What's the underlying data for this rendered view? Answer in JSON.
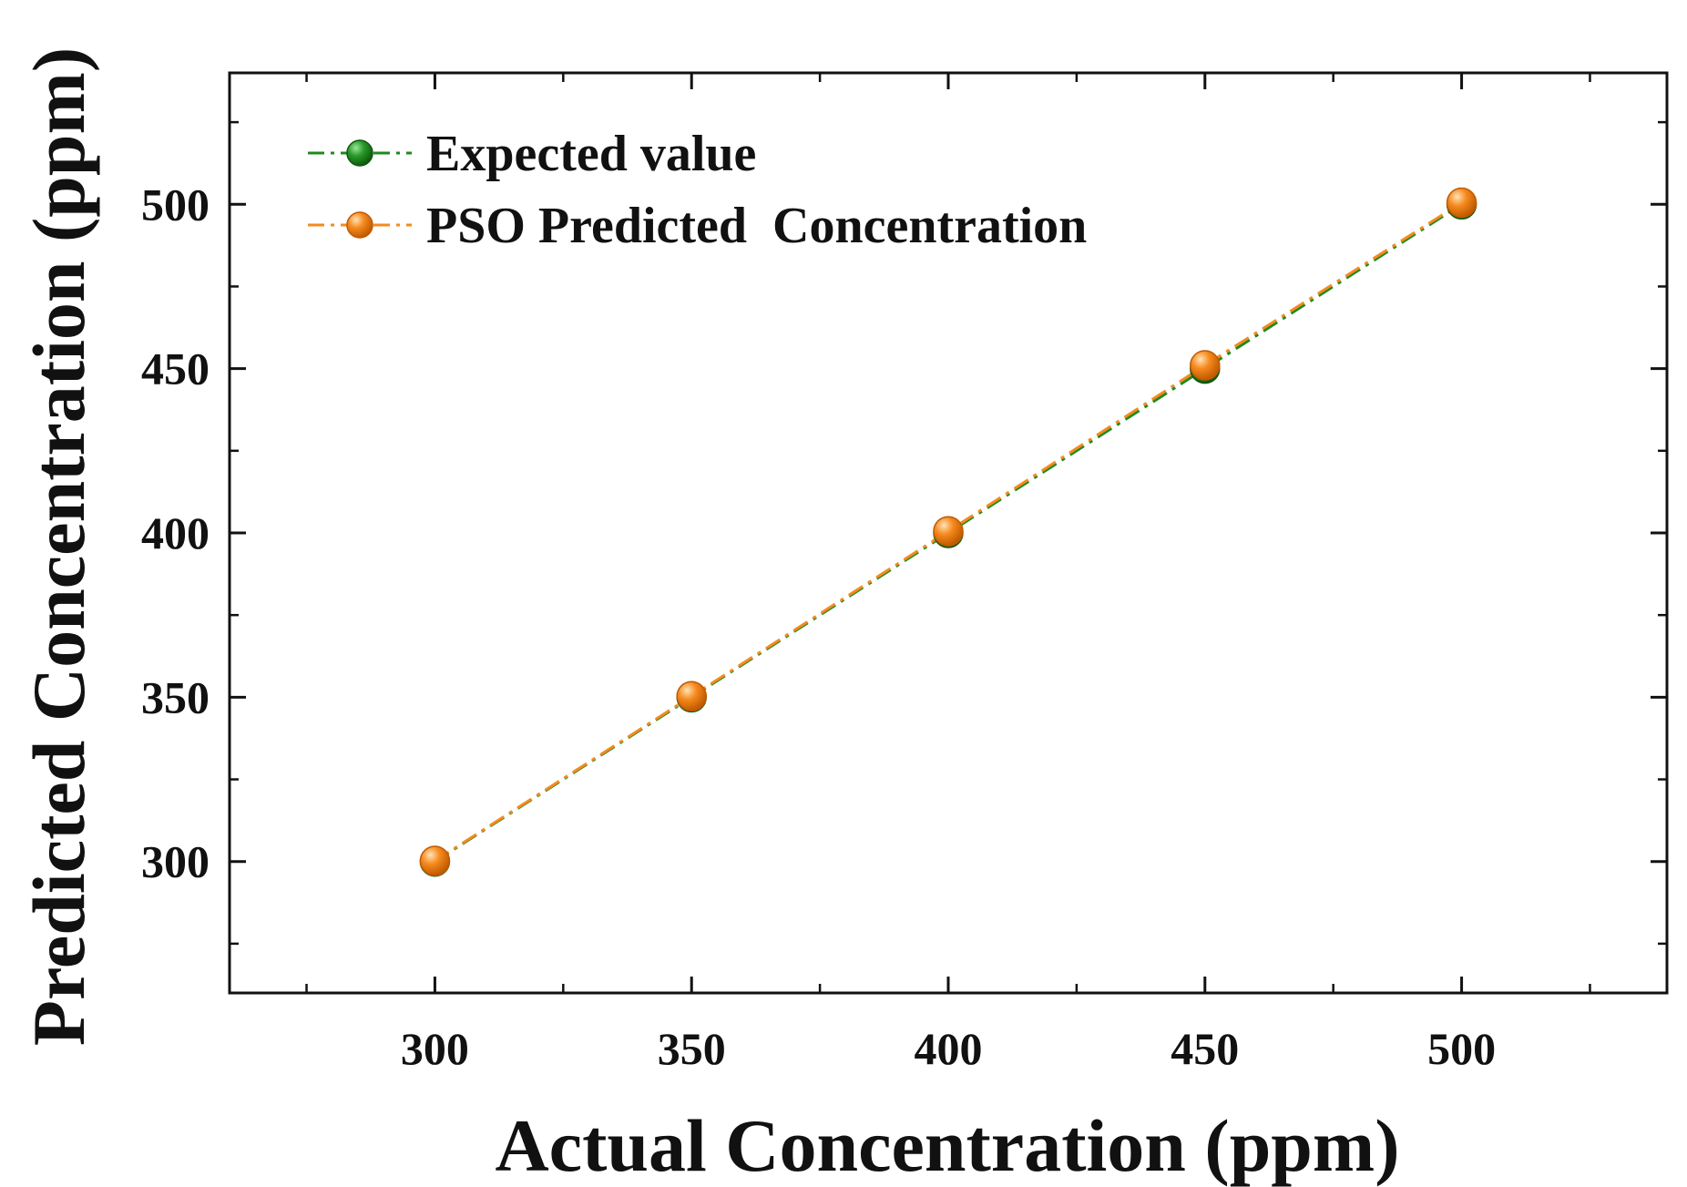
{
  "chart_data": {
    "type": "line",
    "title": "",
    "xlabel": "Actual Concentration (ppm)",
    "ylabel": "Predicted Concentration (ppm)",
    "xlim": [
      260,
      540
    ],
    "ylim": [
      260,
      540
    ],
    "xticks": [
      300,
      350,
      400,
      450,
      500
    ],
    "yticks": [
      300,
      350,
      400,
      450,
      500
    ],
    "xtick_labels": [
      "300",
      "350",
      "400",
      "450",
      "500"
    ],
    "ytick_labels": [
      "300",
      "350",
      "400",
      "450",
      "500"
    ],
    "minor_tick_step": 25,
    "grid": false,
    "legend_position": "top-left",
    "series": [
      {
        "name": "Expected value",
        "color": "#1f8a1f",
        "marker": "circle",
        "linestyle": "dash-dot",
        "x": [
          300,
          350,
          400,
          450,
          500
        ],
        "y": [
          300,
          350,
          400,
          450,
          500
        ]
      },
      {
        "name": "PSO Predicted  Concentration",
        "color": "#f58a1f",
        "marker": "circle",
        "linestyle": "dash-dot",
        "x": [
          300,
          350,
          400,
          450,
          500
        ],
        "y": [
          300.2,
          350.3,
          400.5,
          451.0,
          500.5
        ]
      }
    ]
  }
}
